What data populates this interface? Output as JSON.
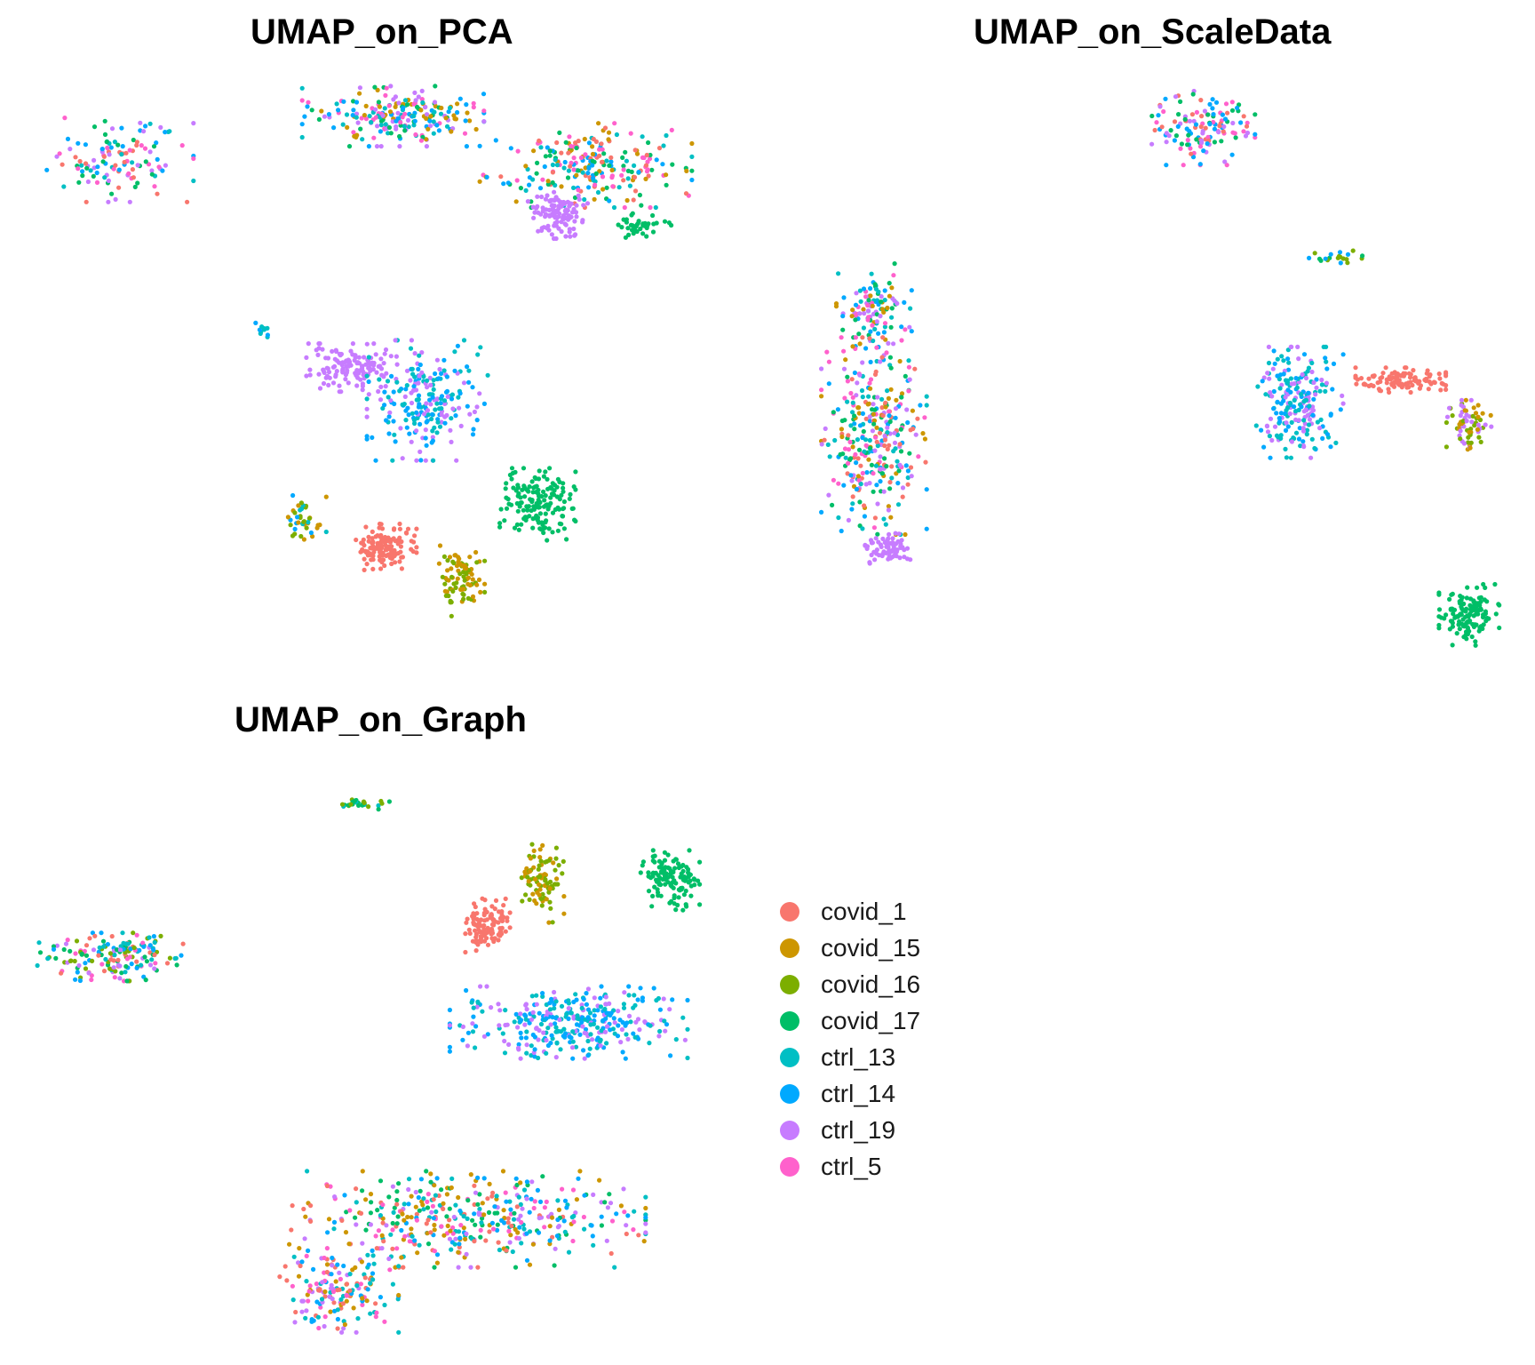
{
  "chart_data": [
    {
      "type": "scatter",
      "title": "UMAP_on_PCA",
      "xlabel": "",
      "ylabel": "",
      "grid": false,
      "clusters": [
        {
          "cx": 0.1,
          "cy": 0.87,
          "rx": 0.1,
          "ry": 0.07,
          "n": 120,
          "mix": [
            "covid_17",
            "ctrl_14",
            "ctrl_19",
            "ctrl_5",
            "ctrl_13",
            "covid_1"
          ]
        },
        {
          "cx": 0.5,
          "cy": 0.95,
          "rx": 0.12,
          "ry": 0.05,
          "n": 220,
          "mix": [
            "ctrl_13",
            "ctrl_19",
            "ctrl_14",
            "ctrl_5",
            "covid_15",
            "covid_17"
          ]
        },
        {
          "cx": 0.78,
          "cy": 0.86,
          "rx": 0.14,
          "ry": 0.07,
          "n": 240,
          "mix": [
            "ctrl_14",
            "ctrl_13",
            "ctrl_5",
            "covid_17",
            "covid_15",
            "covid_1"
          ]
        },
        {
          "cx": 0.74,
          "cy": 0.77,
          "rx": 0.04,
          "ry": 0.04,
          "n": 120,
          "mix": [
            "ctrl_19"
          ]
        },
        {
          "cx": 0.86,
          "cy": 0.75,
          "rx": 0.04,
          "ry": 0.02,
          "n": 40,
          "mix": [
            "covid_17"
          ]
        },
        {
          "cx": 0.44,
          "cy": 0.49,
          "rx": 0.06,
          "ry": 0.04,
          "n": 130,
          "mix": [
            "ctrl_19"
          ]
        },
        {
          "cx": 0.55,
          "cy": 0.43,
          "rx": 0.08,
          "ry": 0.1,
          "n": 220,
          "mix": [
            "ctrl_14",
            "ctrl_13",
            "ctrl_19"
          ]
        },
        {
          "cx": 0.71,
          "cy": 0.24,
          "rx": 0.05,
          "ry": 0.06,
          "n": 160,
          "mix": [
            "covid_17"
          ]
        },
        {
          "cx": 0.49,
          "cy": 0.16,
          "rx": 0.04,
          "ry": 0.04,
          "n": 140,
          "mix": [
            "covid_1"
          ]
        },
        {
          "cx": 0.6,
          "cy": 0.1,
          "rx": 0.03,
          "ry": 0.06,
          "n": 90,
          "mix": [
            "covid_16",
            "covid_15"
          ]
        },
        {
          "cx": 0.37,
          "cy": 0.21,
          "rx": 0.03,
          "ry": 0.05,
          "n": 40,
          "mix": [
            "covid_15",
            "ctrl_13",
            "covid_16",
            "ctrl_14"
          ]
        },
        {
          "cx": 0.31,
          "cy": 0.56,
          "rx": 0.01,
          "ry": 0.02,
          "n": 10,
          "mix": [
            "ctrl_13",
            "ctrl_14"
          ]
        }
      ]
    },
    {
      "type": "scatter",
      "title": "UMAP_on_ScaleData",
      "xlabel": "",
      "ylabel": "",
      "grid": false,
      "clusters": [
        {
          "cx": 0.55,
          "cy": 0.93,
          "rx": 0.07,
          "ry": 0.06,
          "n": 130,
          "mix": [
            "covid_17",
            "ctrl_19",
            "ctrl_5",
            "covid_1",
            "ctrl_14"
          ]
        },
        {
          "cx": 0.75,
          "cy": 0.7,
          "rx": 0.04,
          "ry": 0.01,
          "n": 20,
          "mix": [
            "covid_16",
            "covid_17",
            "ctrl_14"
          ]
        },
        {
          "cx": 0.07,
          "cy": 0.6,
          "rx": 0.05,
          "ry": 0.08,
          "n": 120,
          "mix": [
            "ctrl_14",
            "ctrl_13",
            "ctrl_19",
            "covid_17",
            "covid_15",
            "ctrl_5"
          ]
        },
        {
          "cx": 0.07,
          "cy": 0.38,
          "rx": 0.07,
          "ry": 0.16,
          "n": 320,
          "mix": [
            "ctrl_14",
            "ctrl_13",
            "ctrl_5",
            "covid_17",
            "covid_15",
            "covid_1",
            "ctrl_19"
          ]
        },
        {
          "cx": 0.09,
          "cy": 0.18,
          "rx": 0.03,
          "ry": 0.03,
          "n": 70,
          "mix": [
            "ctrl_19"
          ]
        },
        {
          "cx": 0.69,
          "cy": 0.44,
          "rx": 0.06,
          "ry": 0.09,
          "n": 220,
          "mix": [
            "ctrl_14",
            "ctrl_13",
            "ctrl_19"
          ]
        },
        {
          "cx": 0.84,
          "cy": 0.48,
          "rx": 0.06,
          "ry": 0.02,
          "n": 110,
          "mix": [
            "covid_1"
          ]
        },
        {
          "cx": 0.94,
          "cy": 0.4,
          "rx": 0.03,
          "ry": 0.04,
          "n": 70,
          "mix": [
            "covid_15",
            "covid_16",
            "ctrl_19"
          ]
        },
        {
          "cx": 0.94,
          "cy": 0.06,
          "rx": 0.04,
          "ry": 0.05,
          "n": 130,
          "mix": [
            "covid_17"
          ]
        }
      ]
    },
    {
      "type": "scatter",
      "title": "UMAP_on_Graph",
      "xlabel": "",
      "ylabel": "",
      "grid": false,
      "clusters": [
        {
          "cx": 0.09,
          "cy": 0.68,
          "rx": 0.1,
          "ry": 0.04,
          "n": 170,
          "mix": [
            "covid_17",
            "ctrl_19",
            "ctrl_5",
            "ctrl_14",
            "ctrl_13",
            "covid_16",
            "covid_1"
          ]
        },
        {
          "cx": 0.46,
          "cy": 0.96,
          "rx": 0.05,
          "ry": 0.01,
          "n": 25,
          "mix": [
            "covid_16",
            "covid_17",
            "ctrl_13"
          ]
        },
        {
          "cx": 0.65,
          "cy": 0.74,
          "rx": 0.03,
          "ry": 0.05,
          "n": 110,
          "mix": [
            "covid_1"
          ]
        },
        {
          "cx": 0.73,
          "cy": 0.82,
          "rx": 0.03,
          "ry": 0.07,
          "n": 90,
          "mix": [
            "covid_16",
            "covid_15"
          ]
        },
        {
          "cx": 0.92,
          "cy": 0.82,
          "rx": 0.04,
          "ry": 0.05,
          "n": 120,
          "mix": [
            "covid_17"
          ]
        },
        {
          "cx": 0.77,
          "cy": 0.56,
          "rx": 0.16,
          "ry": 0.06,
          "n": 330,
          "mix": [
            "ctrl_14",
            "ctrl_19",
            "ctrl_13"
          ]
        },
        {
          "cx": 0.62,
          "cy": 0.2,
          "rx": 0.24,
          "ry": 0.08,
          "n": 420,
          "mix": [
            "ctrl_14",
            "ctrl_19",
            "ctrl_13",
            "ctrl_5",
            "covid_17",
            "covid_1",
            "covid_15"
          ]
        },
        {
          "cx": 0.43,
          "cy": 0.07,
          "rx": 0.08,
          "ry": 0.07,
          "n": 160,
          "mix": [
            "ctrl_14",
            "ctrl_19",
            "ctrl_13",
            "ctrl_5",
            "covid_1",
            "covid_15"
          ]
        }
      ]
    }
  ],
  "legend": {
    "items": [
      {
        "label": "covid_1",
        "color": "#F8766D"
      },
      {
        "label": "covid_15",
        "color": "#CD9600"
      },
      {
        "label": "covid_16",
        "color": "#7CAE00"
      },
      {
        "label": "covid_17",
        "color": "#00BE67"
      },
      {
        "label": "ctrl_13",
        "color": "#00BFC4"
      },
      {
        "label": "ctrl_14",
        "color": "#00A9FF"
      },
      {
        "label": "ctrl_19",
        "color": "#C77CFF"
      },
      {
        "label": "ctrl_5",
        "color": "#FF61CC"
      }
    ]
  }
}
